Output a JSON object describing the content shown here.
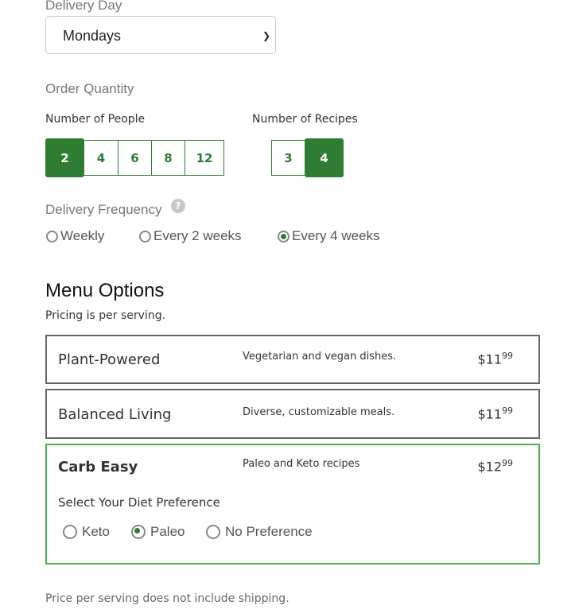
{
  "delivery_day": {
    "label": "Delivery Day",
    "value": "Mondays"
  },
  "order_quantity": {
    "title": "Order Quantity",
    "people": {
      "label": "Number of People",
      "options": [
        "2",
        "4",
        "6",
        "8",
        "12"
      ],
      "selected": "2"
    },
    "recipes": {
      "label": "Number of Recipes",
      "options": [
        "3",
        "4"
      ],
      "selected": "4"
    }
  },
  "frequency": {
    "label": "Delivery Frequency",
    "help_icon": "question-circle-icon",
    "options": [
      "Weekly",
      "Every 2 weeks",
      "Every 4 weeks"
    ],
    "selected": "Every 4 weeks"
  },
  "menu": {
    "title": "Menu Options",
    "subtitle": "Pricing is per serving.",
    "options": [
      {
        "name": "Plant-Powered",
        "desc": "Vegetarian and vegan dishes.",
        "price_main": "$11",
        "price_cents": "99"
      },
      {
        "name": "Balanced Living",
        "desc": "Diverse, customizable meals.",
        "price_main": "$11",
        "price_cents": "99"
      },
      {
        "name": "Carb Easy",
        "desc": "Paleo and Keto recipes",
        "price_main": "$12",
        "price_cents": "99",
        "selected": true
      }
    ],
    "diet": {
      "label": "Select Your Diet Preference",
      "options": [
        "Keto",
        "Paleo",
        "No Preference"
      ],
      "selected": "Paleo"
    }
  },
  "footer": "Price per serving does not include shipping.",
  "colors": {
    "accent": "#2e7d32",
    "selected_border": "#4caf50"
  }
}
